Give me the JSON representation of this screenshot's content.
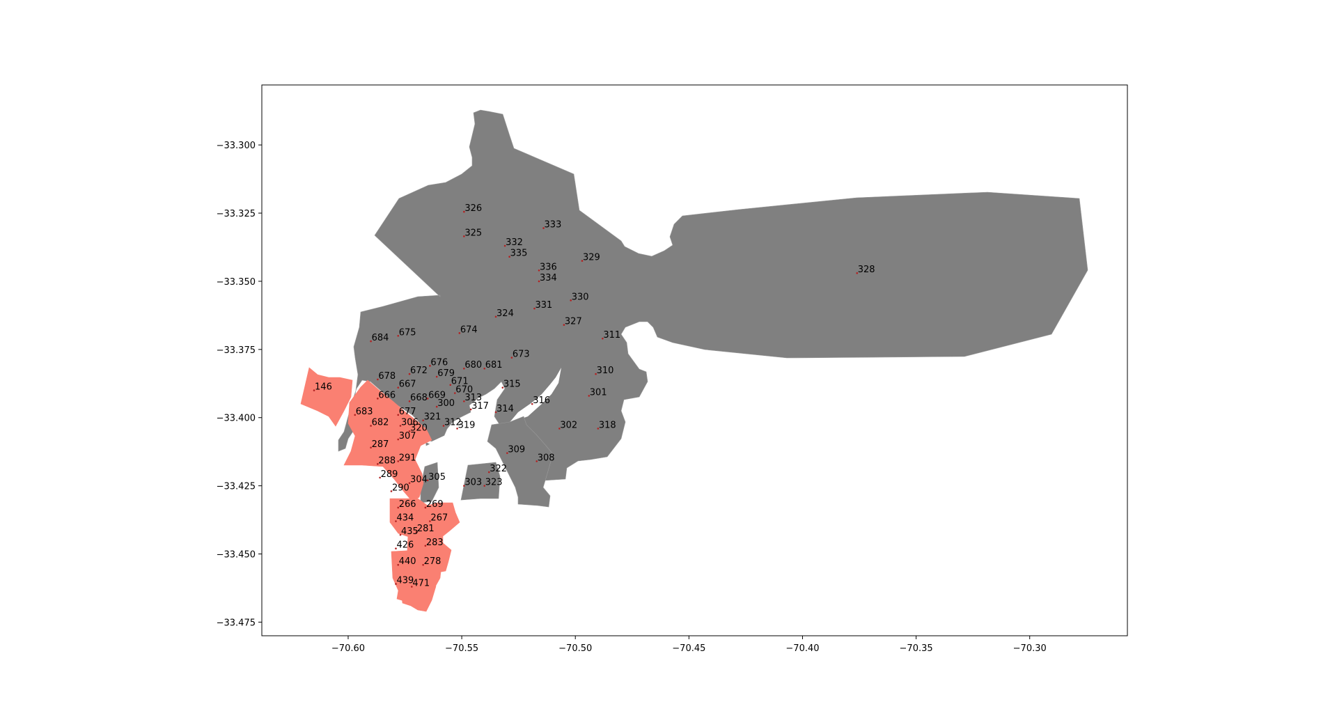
{
  "figure": {
    "x_ticks": [
      "−70.60",
      "−70.55",
      "−70.50",
      "−70.45",
      "−70.40",
      "−70.35",
      "−70.30"
    ],
    "y_ticks": [
      "−33.300",
      "−33.325",
      "−33.350",
      "−33.375",
      "−33.400",
      "−33.425",
      "−33.450",
      "−33.475"
    ],
    "xlim": [
      -70.638,
      -70.257
    ],
    "ylim": [
      -33.48,
      -33.278
    ],
    "colors": {
      "base_region": "#808080",
      "highlight_region": "#fa8072",
      "centroid_dot": "#b22222"
    }
  },
  "chart_data": {
    "type": "scatter",
    "title": "",
    "xlabel": "",
    "ylabel": "",
    "grid": false,
    "xlim": [
      -70.638,
      -70.257
    ],
    "ylim": [
      -33.48,
      -33.278
    ],
    "zones": [
      {
        "id": "326",
        "x": -70.549,
        "y": -33.3245,
        "hl": false
      },
      {
        "id": "325",
        "x": -70.549,
        "y": -33.3335,
        "hl": false
      },
      {
        "id": "332",
        "x": -70.531,
        "y": -33.337,
        "hl": false
      },
      {
        "id": "333",
        "x": -70.514,
        "y": -33.3305,
        "hl": false
      },
      {
        "id": "335",
        "x": -70.529,
        "y": -33.341,
        "hl": false
      },
      {
        "id": "329",
        "x": -70.497,
        "y": -33.3425,
        "hl": false
      },
      {
        "id": "336",
        "x": -70.516,
        "y": -33.346,
        "hl": false
      },
      {
        "id": "334",
        "x": -70.516,
        "y": -33.35,
        "hl": false
      },
      {
        "id": "328",
        "x": -70.376,
        "y": -33.347,
        "hl": false
      },
      {
        "id": "330",
        "x": -70.502,
        "y": -33.357,
        "hl": false
      },
      {
        "id": "331",
        "x": -70.518,
        "y": -33.36,
        "hl": false
      },
      {
        "id": "324",
        "x": -70.535,
        "y": -33.363,
        "hl": false
      },
      {
        "id": "327",
        "x": -70.505,
        "y": -33.366,
        "hl": false
      },
      {
        "id": "674",
        "x": -70.551,
        "y": -33.369,
        "hl": false
      },
      {
        "id": "675",
        "x": -70.578,
        "y": -33.37,
        "hl": false
      },
      {
        "id": "684",
        "x": -70.59,
        "y": -33.372,
        "hl": false
      },
      {
        "id": "311",
        "x": -70.488,
        "y": -33.371,
        "hl": false
      },
      {
        "id": "673",
        "x": -70.528,
        "y": -33.378,
        "hl": false
      },
      {
        "id": "676",
        "x": -70.564,
        "y": -33.381,
        "hl": false
      },
      {
        "id": "680",
        "x": -70.549,
        "y": -33.382,
        "hl": false
      },
      {
        "id": "681",
        "x": -70.54,
        "y": -33.382,
        "hl": false
      },
      {
        "id": "672",
        "x": -70.573,
        "y": -33.384,
        "hl": false
      },
      {
        "id": "678",
        "x": -70.587,
        "y": -33.386,
        "hl": false
      },
      {
        "id": "679",
        "x": -70.561,
        "y": -33.385,
        "hl": false
      },
      {
        "id": "310",
        "x": -70.491,
        "y": -33.384,
        "hl": false
      },
      {
        "id": "671",
        "x": -70.555,
        "y": -33.388,
        "hl": false
      },
      {
        "id": "667",
        "x": -70.578,
        "y": -33.389,
        "hl": false
      },
      {
        "id": "315",
        "x": -70.532,
        "y": -33.389,
        "hl": false
      },
      {
        "id": "670",
        "x": -70.553,
        "y": -33.391,
        "hl": false
      },
      {
        "id": "666",
        "x": -70.587,
        "y": -33.393,
        "hl": false
      },
      {
        "id": "669",
        "x": -70.565,
        "y": -33.393,
        "hl": false
      },
      {
        "id": "301",
        "x": -70.494,
        "y": -33.392,
        "hl": false
      },
      {
        "id": "668",
        "x": -70.573,
        "y": -33.394,
        "hl": false
      },
      {
        "id": "313",
        "x": -70.549,
        "y": -33.394,
        "hl": false
      },
      {
        "id": "316",
        "x": -70.519,
        "y": -33.395,
        "hl": false
      },
      {
        "id": "300",
        "x": -70.561,
        "y": -33.396,
        "hl": false
      },
      {
        "id": "317",
        "x": -70.546,
        "y": -33.397,
        "hl": false
      },
      {
        "id": "314",
        "x": -70.535,
        "y": -33.398,
        "hl": false
      },
      {
        "id": "683",
        "x": -70.597,
        "y": -33.399,
        "hl": true
      },
      {
        "id": "677",
        "x": -70.578,
        "y": -33.399,
        "hl": false
      },
      {
        "id": "321",
        "x": -70.567,
        "y": -33.401,
        "hl": false
      },
      {
        "id": "682",
        "x": -70.59,
        "y": -33.403,
        "hl": true
      },
      {
        "id": "306",
        "x": -70.577,
        "y": -33.403,
        "hl": false
      },
      {
        "id": "312",
        "x": -70.558,
        "y": -33.403,
        "hl": false
      },
      {
        "id": "319",
        "x": -70.552,
        "y": -33.404,
        "hl": false
      },
      {
        "id": "302",
        "x": -70.507,
        "y": -33.404,
        "hl": false
      },
      {
        "id": "318",
        "x": -70.49,
        "y": -33.404,
        "hl": false
      },
      {
        "id": "320",
        "x": -70.573,
        "y": -33.405,
        "hl": false
      },
      {
        "id": "307",
        "x": -70.578,
        "y": -33.408,
        "hl": true
      },
      {
        "id": "287",
        "x": -70.59,
        "y": -33.411,
        "hl": true
      },
      {
        "id": "309",
        "x": -70.53,
        "y": -33.413,
        "hl": false
      },
      {
        "id": "291",
        "x": -70.578,
        "y": -33.416,
        "hl": true
      },
      {
        "id": "308",
        "x": -70.517,
        "y": -33.416,
        "hl": false
      },
      {
        "id": "288",
        "x": -70.587,
        "y": -33.417,
        "hl": true
      },
      {
        "id": "146",
        "x": -70.615,
        "y": -33.39,
        "hl": true
      },
      {
        "id": "322",
        "x": -70.538,
        "y": -33.42,
        "hl": false
      },
      {
        "id": "289",
        "x": -70.586,
        "y": -33.422,
        "hl": true
      },
      {
        "id": "304",
        "x": -70.573,
        "y": -33.424,
        "hl": false
      },
      {
        "id": "305",
        "x": -70.565,
        "y": -33.423,
        "hl": false
      },
      {
        "id": "303",
        "x": -70.549,
        "y": -33.425,
        "hl": false
      },
      {
        "id": "323",
        "x": -70.54,
        "y": -33.425,
        "hl": false
      },
      {
        "id": "290",
        "x": -70.581,
        "y": -33.427,
        "hl": true
      },
      {
        "id": "266",
        "x": -70.578,
        "y": -33.433,
        "hl": true
      },
      {
        "id": "269",
        "x": -70.566,
        "y": -33.433,
        "hl": true
      },
      {
        "id": "434",
        "x": -70.579,
        "y": -33.438,
        "hl": true
      },
      {
        "id": "267",
        "x": -70.564,
        "y": -33.438,
        "hl": true
      },
      {
        "id": "435",
        "x": -70.577,
        "y": -33.443,
        "hl": true
      },
      {
        "id": "281",
        "x": -70.57,
        "y": -33.442,
        "hl": true
      },
      {
        "id": "426",
        "x": -70.579,
        "y": -33.448,
        "hl": true
      },
      {
        "id": "283",
        "x": -70.566,
        "y": -33.447,
        "hl": true
      },
      {
        "id": "440",
        "x": -70.578,
        "y": -33.454,
        "hl": true
      },
      {
        "id": "278",
        "x": -70.567,
        "y": -33.454,
        "hl": true
      },
      {
        "id": "439",
        "x": -70.579,
        "y": -33.461,
        "hl": true
      },
      {
        "id": "471",
        "x": -70.572,
        "y": -33.462,
        "hl": true
      }
    ]
  }
}
